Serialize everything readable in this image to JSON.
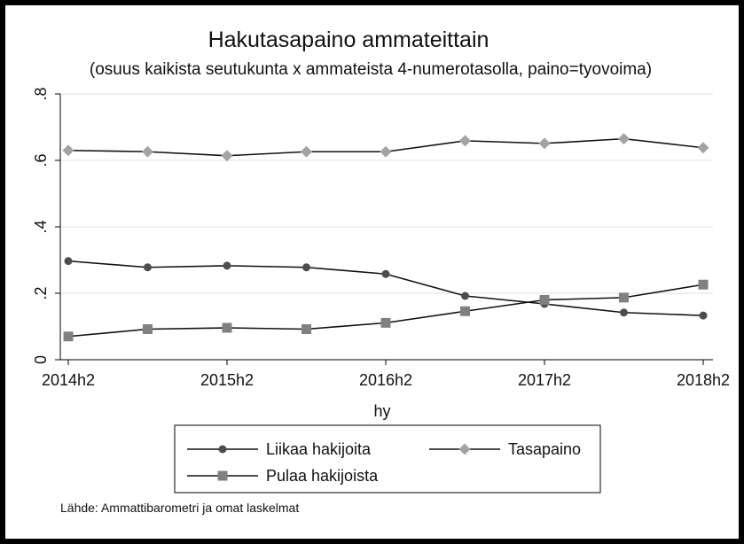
{
  "chart_data": {
    "type": "line",
    "title": "Hakutasapaino ammateittain",
    "subtitle": "(osuus kaikista seutukunta x ammateista 4-numerotasolla, paino=tyovoima)",
    "xlabel": "hy",
    "ylabel": "",
    "x": [
      "2014h2",
      "2015h1",
      "2015h2",
      "2016h1",
      "2016h2",
      "2017h1",
      "2017h2",
      "2018h1",
      "2018h2"
    ],
    "x_tick_labels": [
      "2014h2",
      "2015h2",
      "2016h2",
      "2017h2",
      "2018h2"
    ],
    "y_tick_labels": [
      "0",
      ".2",
      ".4",
      ".6",
      ".8"
    ],
    "y_ticks": [
      0,
      0.2,
      0.4,
      0.6,
      0.8
    ],
    "ylim": [
      0,
      0.8
    ],
    "grid": true,
    "legend_placement": "bottom",
    "series": [
      {
        "name": "Liikaa hakijoita",
        "marker": "circle",
        "color": "#4d4d4d",
        "values": [
          0.297,
          0.278,
          0.283,
          0.278,
          0.258,
          0.192,
          0.168,
          0.142,
          0.133
        ]
      },
      {
        "name": "Tasapaino",
        "marker": "diamond",
        "color": "#a3a3a3",
        "values": [
          0.63,
          0.626,
          0.614,
          0.626,
          0.626,
          0.659,
          0.651,
          0.665,
          0.638
        ]
      },
      {
        "name": "Pulaa hakijoista",
        "marker": "square",
        "color": "#808080",
        "values": [
          0.07,
          0.092,
          0.096,
          0.092,
          0.111,
          0.146,
          0.18,
          0.187,
          0.226
        ]
      }
    ]
  },
  "source_note": "Lähde: Ammattibarometri ja omat laskelmat"
}
